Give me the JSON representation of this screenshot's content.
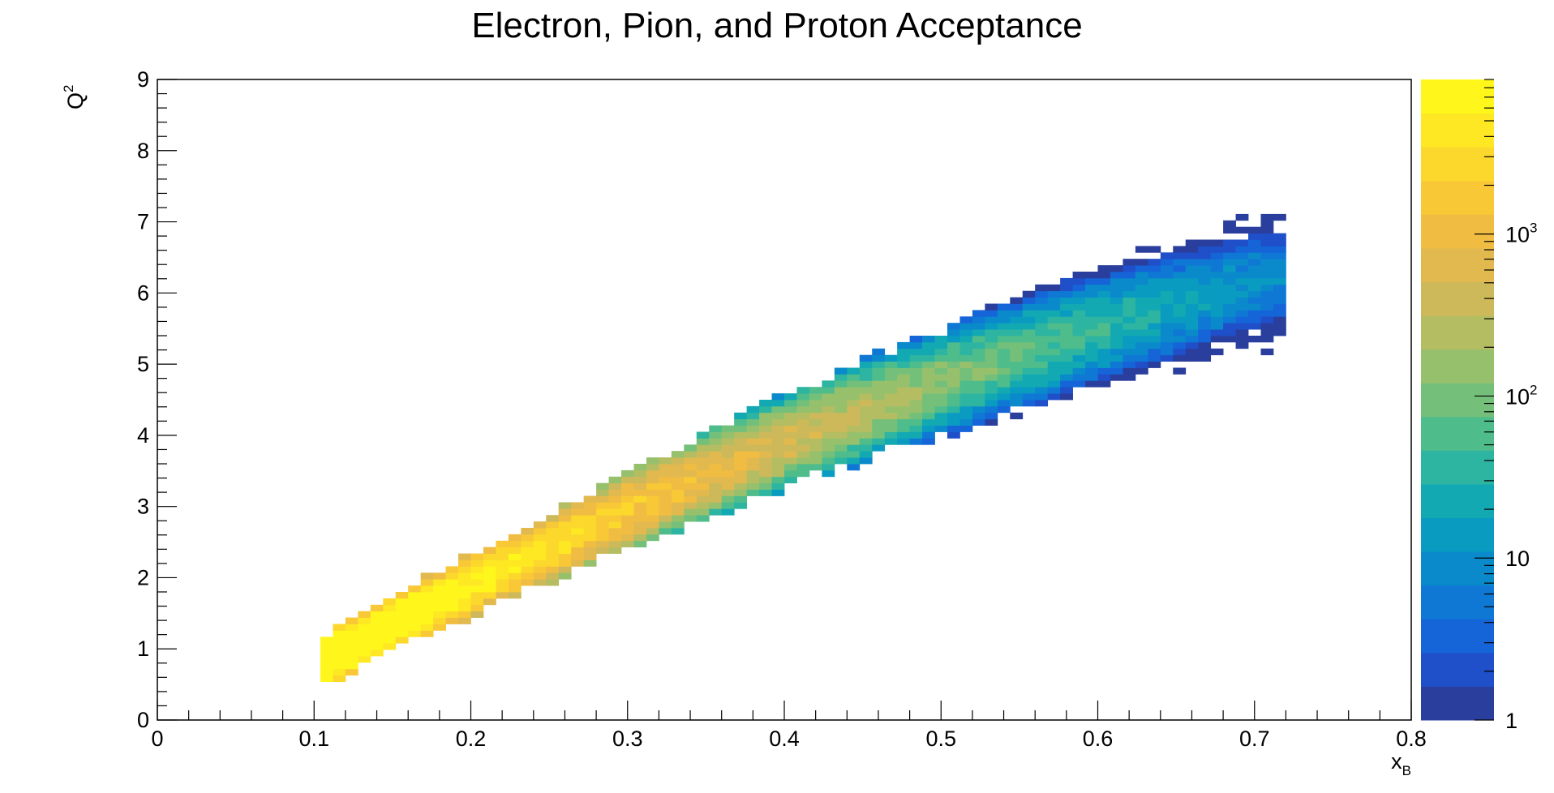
{
  "chart_data": {
    "type": "heatmap",
    "title": "Electron, Pion, and Proton Acceptance",
    "xlabel_main": "x",
    "xlabel_sub": "B",
    "ylabel_main": "Q",
    "ylabel_sup": "2",
    "xlim": [
      0,
      0.8
    ],
    "ylim": [
      0,
      9
    ],
    "x_ticks": [
      {
        "value": 0,
        "label": "0"
      },
      {
        "value": 0.1,
        "label": "0.1"
      },
      {
        "value": 0.2,
        "label": "0.2"
      },
      {
        "value": 0.3,
        "label": "0.3"
      },
      {
        "value": 0.4,
        "label": "0.4"
      },
      {
        "value": 0.5,
        "label": "0.5"
      },
      {
        "value": 0.6,
        "label": "0.6"
      },
      {
        "value": 0.7,
        "label": "0.7"
      },
      {
        "value": 0.8,
        "label": "0.8"
      }
    ],
    "y_ticks": [
      {
        "value": 0,
        "label": "0"
      },
      {
        "value": 1,
        "label": "1"
      },
      {
        "value": 2,
        "label": "2"
      },
      {
        "value": 3,
        "label": "3"
      },
      {
        "value": 4,
        "label": "4"
      },
      {
        "value": 5,
        "label": "5"
      },
      {
        "value": 6,
        "label": "6"
      },
      {
        "value": 7,
        "label": "7"
      },
      {
        "value": 8,
        "label": "8"
      },
      {
        "value": 9,
        "label": "9"
      }
    ],
    "x_bins": 100,
    "y_bins": 100,
    "z_scale": "log",
    "z_range": [
      1,
      9000
    ],
    "z_ticks": [
      {
        "value": 1,
        "label": "1"
      },
      {
        "value": 10,
        "label": "10"
      },
      {
        "value": 100,
        "base": "10",
        "exp": "2"
      },
      {
        "value": 1000,
        "base": "10",
        "exp": "3"
      }
    ],
    "palette": [
      "#2a3f9d",
      "#1f4fc9",
      "#1565d8",
      "#0f78d4",
      "#0a8acb",
      "#0a9bc1",
      "#13a9b3",
      "#2db5a1",
      "#4fbc8b",
      "#74c07a",
      "#97c06c",
      "#b4bd62",
      "#cdb95a",
      "#e2b94f",
      "#f0bd42",
      "#f8c837",
      "#fcd82c",
      "#fde823",
      "#fff71c"
    ],
    "band": {
      "center_a": -0.5,
      "center_b": 13.0,
      "center_c": -5.0,
      "half_width_base": 0.25,
      "half_width_slope": 1.1,
      "x_start": 0.105,
      "x_end": 0.72,
      "peak_x": 0.19,
      "peak_log_count": 3.9,
      "decay_x": 1.25,
      "edge_falloff": 0.9
    }
  }
}
